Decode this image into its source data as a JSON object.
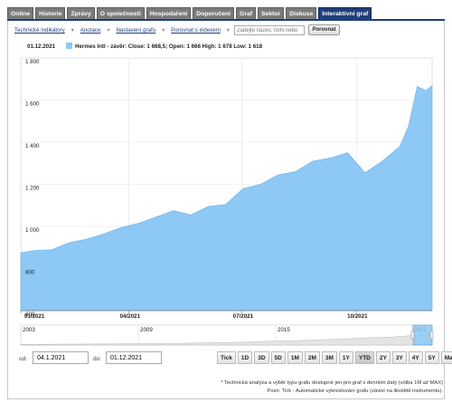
{
  "tabs": [
    {
      "label": "Online",
      "active": false
    },
    {
      "label": "Historie",
      "active": false
    },
    {
      "label": "Zprávy",
      "active": false
    },
    {
      "label": "O společnosti",
      "active": false
    },
    {
      "label": "Hospodaření",
      "active": false
    },
    {
      "label": "Doporučení",
      "active": false
    },
    {
      "label": "Graf",
      "active": false
    },
    {
      "label": "Sektor",
      "active": false
    },
    {
      "label": "Diskuse",
      "active": false
    },
    {
      "label": "Interaktivní graf",
      "active": true
    }
  ],
  "toolbar": {
    "tech_indicators": "Technické indikátory",
    "annotations": "Anotace",
    "settings": "Nastavení grafu",
    "compare_index": "Porovnat s indexem",
    "isin_placeholder": "Zadejte název, ISIN nebo",
    "compare_button": "Porovnat"
  },
  "legend": {
    "date": "01.12.2021",
    "text": "Hermes Intl - závěr: Close: 1 668,5; Open: 1 666 High: 1 678 Low: 1 618",
    "color": "#8ec8f4"
  },
  "chart_data": {
    "type": "area",
    "title": "",
    "series": [
      {
        "name": "Hermes Intl",
        "color": "#8ec8f4",
        "x": [
          "2021-01-04",
          "2021-01-15",
          "2021-01-29",
          "2021-02-12",
          "2021-02-26",
          "2021-03-12",
          "2021-03-26",
          "2021-04-09",
          "2021-04-23",
          "2021-05-07",
          "2021-05-21",
          "2021-06-04",
          "2021-06-18",
          "2021-07-02",
          "2021-07-16",
          "2021-07-30",
          "2021-08-13",
          "2021-08-27",
          "2021-09-10",
          "2021-09-24",
          "2021-10-08",
          "2021-10-22",
          "2021-11-05",
          "2021-11-12",
          "2021-11-19",
          "2021-11-26",
          "2021-12-01"
        ],
        "values": [
          875,
          880,
          895,
          918,
          945,
          960,
          1000,
          1010,
          1050,
          1070,
          1060,
          1090,
          1110,
          1175,
          1205,
          1240,
          1265,
          1305,
          1330,
          1345,
          1260,
          1305,
          1385,
          1470,
          1670,
          1640,
          1668.5
        ]
      }
    ],
    "ylim": [
      600,
      1800
    ],
    "y_ticks": [
      "600",
      "800",
      "1 000",
      "1 200",
      "1 400",
      "1 600",
      "1 800"
    ],
    "x_ticks": [
      "01/2021",
      "04/2021",
      "07/2021",
      "10/2021"
    ],
    "grid": true
  },
  "navigator": {
    "years": [
      "2003",
      "2009",
      "2015",
      "2021"
    ]
  },
  "date_range": {
    "from_label": "od:",
    "from_value": "04.1.2021",
    "to_label": "do:",
    "to_value": "01.12.2021"
  },
  "range_buttons": [
    {
      "label": "Tick",
      "active": false
    },
    {
      "label": "1D",
      "active": false
    },
    {
      "label": "3D",
      "active": false
    },
    {
      "label": "5D",
      "active": false
    },
    {
      "label": "1M",
      "active": false
    },
    {
      "label": "2M",
      "active": false
    },
    {
      "label": "3M",
      "active": false
    },
    {
      "label": "1Y",
      "active": false
    },
    {
      "label": "YTD",
      "active": true
    },
    {
      "label": "2Y",
      "active": false
    },
    {
      "label": "3Y",
      "active": false
    },
    {
      "label": "4Y",
      "active": false
    },
    {
      "label": "5Y",
      "active": false
    },
    {
      "label": "Max",
      "active": false
    }
  ],
  "notes": {
    "line1": "* Technická analýza a výběr typu grafu dostupné jen pro graf s denními daty (volba 1M až MAX)",
    "line2": "Pozn: Tick - Automatické vykreslování grafu (závisí na likviditě instrumentu)."
  }
}
